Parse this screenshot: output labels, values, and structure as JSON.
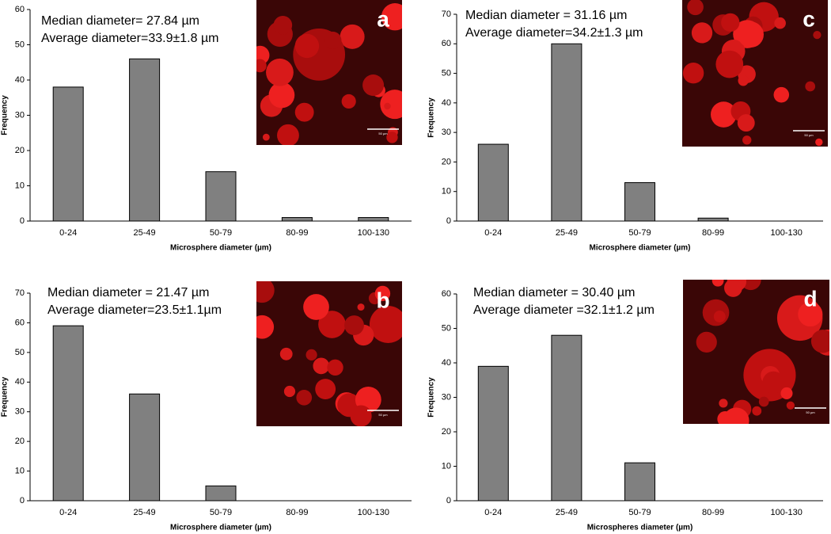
{
  "chart_data": [
    {
      "type": "bar",
      "panel_label": "a",
      "annotations": [
        "Median diameter= 27.84 µm",
        "Average diameter=33.9±1.8 µm"
      ],
      "scale_label": "50 µm",
      "categories": [
        "0-24",
        "25-49",
        "50-79",
        "80-99",
        "100-130"
      ],
      "values": [
        38,
        46,
        14,
        1,
        1
      ],
      "color": "#808080",
      "xlabel": "Microsphere diameter (µm)",
      "ylabel": "Frequency",
      "ylim": [
        0,
        60
      ],
      "yticks": [
        0,
        10,
        20,
        30,
        40,
        50,
        60
      ]
    },
    {
      "type": "bar",
      "panel_label": "c",
      "annotations": [
        "Median diameter = 31.16 µm",
        "Average diameter=34.2±1.3 µm"
      ],
      "scale_label": "50 µm",
      "categories": [
        "0-24",
        "25-49",
        "50-79",
        "80-99",
        "100-130"
      ],
      "values": [
        26,
        60,
        13,
        1,
        0
      ],
      "color": "#808080",
      "xlabel": "Microsphere diameter (µm)",
      "ylabel": "Frequency",
      "ylim": [
        0,
        70
      ],
      "yticks": [
        0,
        10,
        20,
        30,
        40,
        50,
        60,
        70
      ]
    },
    {
      "type": "bar",
      "panel_label": "b",
      "annotations": [
        "Median diameter = 21.47 µm",
        "Average diameter=23.5±1.1µm"
      ],
      "scale_label": "50 µm",
      "categories": [
        "0-24",
        "25-49",
        "50-79",
        "80-99",
        "100-130"
      ],
      "values": [
        59,
        36,
        5,
        0,
        0
      ],
      "color": "#808080",
      "xlabel": "Microsphere diameter (µm)",
      "ylabel": "Frequency",
      "ylim": [
        0,
        70
      ],
      "yticks": [
        0,
        10,
        20,
        30,
        40,
        50,
        60,
        70
      ]
    },
    {
      "type": "bar",
      "panel_label": "d",
      "annotations": [
        "Median diameter = 30.40 µm",
        "Average diameter =32.1±1.2 µm"
      ],
      "scale_label": "50 µm",
      "categories": [
        "0-24",
        "25-49",
        "50-79",
        "80-99",
        "100-130"
      ],
      "values": [
        39,
        48,
        11,
        0,
        0
      ],
      "color": "#808080",
      "xlabel": "Microspheres diameter (µm)",
      "ylabel": "Frequency",
      "ylim": [
        0,
        60
      ],
      "yticks": [
        0,
        10,
        20,
        30,
        40,
        50,
        60
      ]
    }
  ]
}
